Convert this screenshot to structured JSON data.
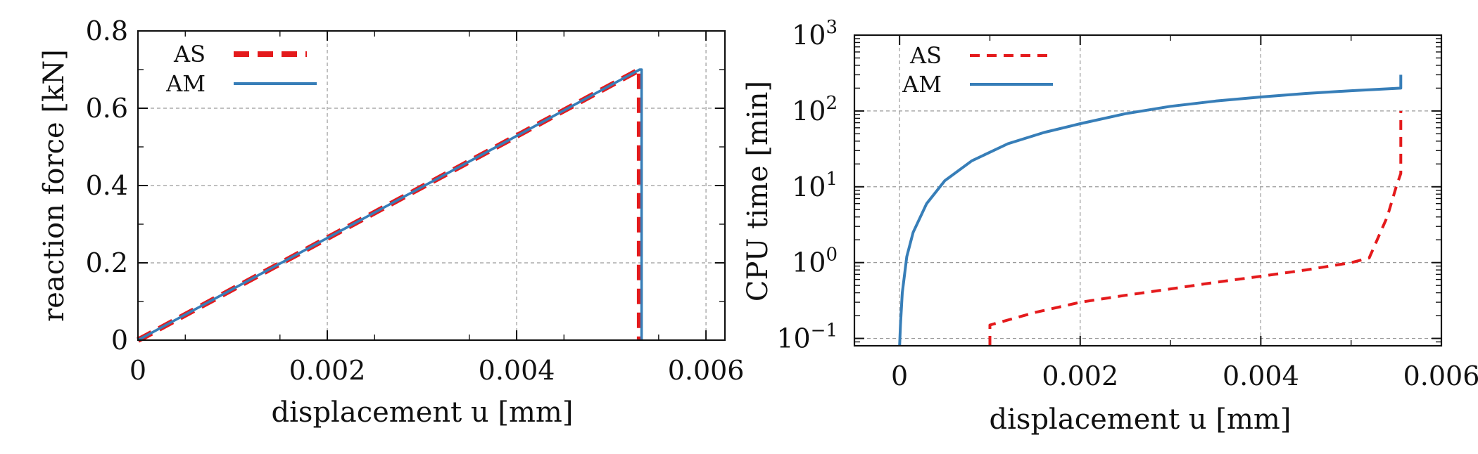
{
  "chart_data": [
    {
      "type": "line",
      "xlabel": "displacement u [mm]",
      "ylabel": "reaction force [kN]",
      "xlim": [
        0,
        0.0062
      ],
      "ylim": [
        0,
        0.8
      ],
      "xticks": [
        0,
        0.002,
        0.004,
        0.006
      ],
      "xtick_labels": [
        "0",
        "0.002",
        "0.004",
        "0.006"
      ],
      "yticks": [
        0,
        0.2,
        0.4,
        0.6,
        0.8
      ],
      "ytick_labels": [
        "0",
        "0.2",
        "0.4",
        "0.6",
        "0.8"
      ],
      "grid": true,
      "legend_position": "top-left",
      "series": [
        {
          "name": "AS",
          "color": "#e41a1c",
          "style": "dashed",
          "x": [
            0,
            0.0001,
            0.0053,
            0.0053
          ],
          "y": [
            0,
            0.013,
            0.7,
            0
          ]
        },
        {
          "name": "AM",
          "color": "#377eb8",
          "style": "solid",
          "x": [
            0,
            0.0053,
            0.00532,
            0.00532
          ],
          "y": [
            0,
            0.7,
            0.7,
            0
          ]
        }
      ]
    },
    {
      "type": "line",
      "xlabel": "displacement u [mm]",
      "ylabel": "CPU time [min]",
      "xscale": "log-y",
      "xlim": [
        -0.0005,
        0.006
      ],
      "ylim": [
        0.08,
        1000
      ],
      "xticks": [
        0,
        0.002,
        0.004,
        0.006
      ],
      "xtick_labels": [
        "0",
        "0.002",
        "0.004",
        "0.006"
      ],
      "yticks": [
        0.1,
        1,
        10,
        100,
        1000
      ],
      "ytick_bases": [
        "10",
        "10",
        "10",
        "10",
        "10"
      ],
      "ytick_exponents": [
        "−1",
        "0",
        "1",
        "2",
        "3"
      ],
      "grid": true,
      "legend_position": "top-left",
      "series": [
        {
          "name": "AS",
          "color": "#e41a1c",
          "style": "dashed",
          "x": [
            0.001,
            0.001,
            0.0015,
            0.002,
            0.0025,
            0.003,
            0.0035,
            0.004,
            0.0045,
            0.005,
            0.0052,
            0.0054,
            0.0055,
            0.00555,
            0.00555
          ],
          "y": [
            0.08,
            0.15,
            0.22,
            0.3,
            0.37,
            0.45,
            0.55,
            0.66,
            0.8,
            1.0,
            1.15,
            4.0,
            10,
            15,
            100
          ]
        },
        {
          "name": "AM",
          "color": "#377eb8",
          "style": "solid",
          "x": [
            0,
            1e-05,
            3e-05,
            8e-05,
            0.00015,
            0.0003,
            0.0005,
            0.0008,
            0.0012,
            0.0016,
            0.002,
            0.0025,
            0.003,
            0.0035,
            0.004,
            0.0045,
            0.005,
            0.00555,
            0.00555,
            0.00555
          ],
          "y": [
            0.08,
            0.15,
            0.4,
            1.2,
            2.5,
            6.0,
            12,
            22,
            37,
            52,
            68,
            92,
            115,
            135,
            153,
            170,
            185,
            200,
            200,
            300
          ]
        }
      ]
    }
  ]
}
